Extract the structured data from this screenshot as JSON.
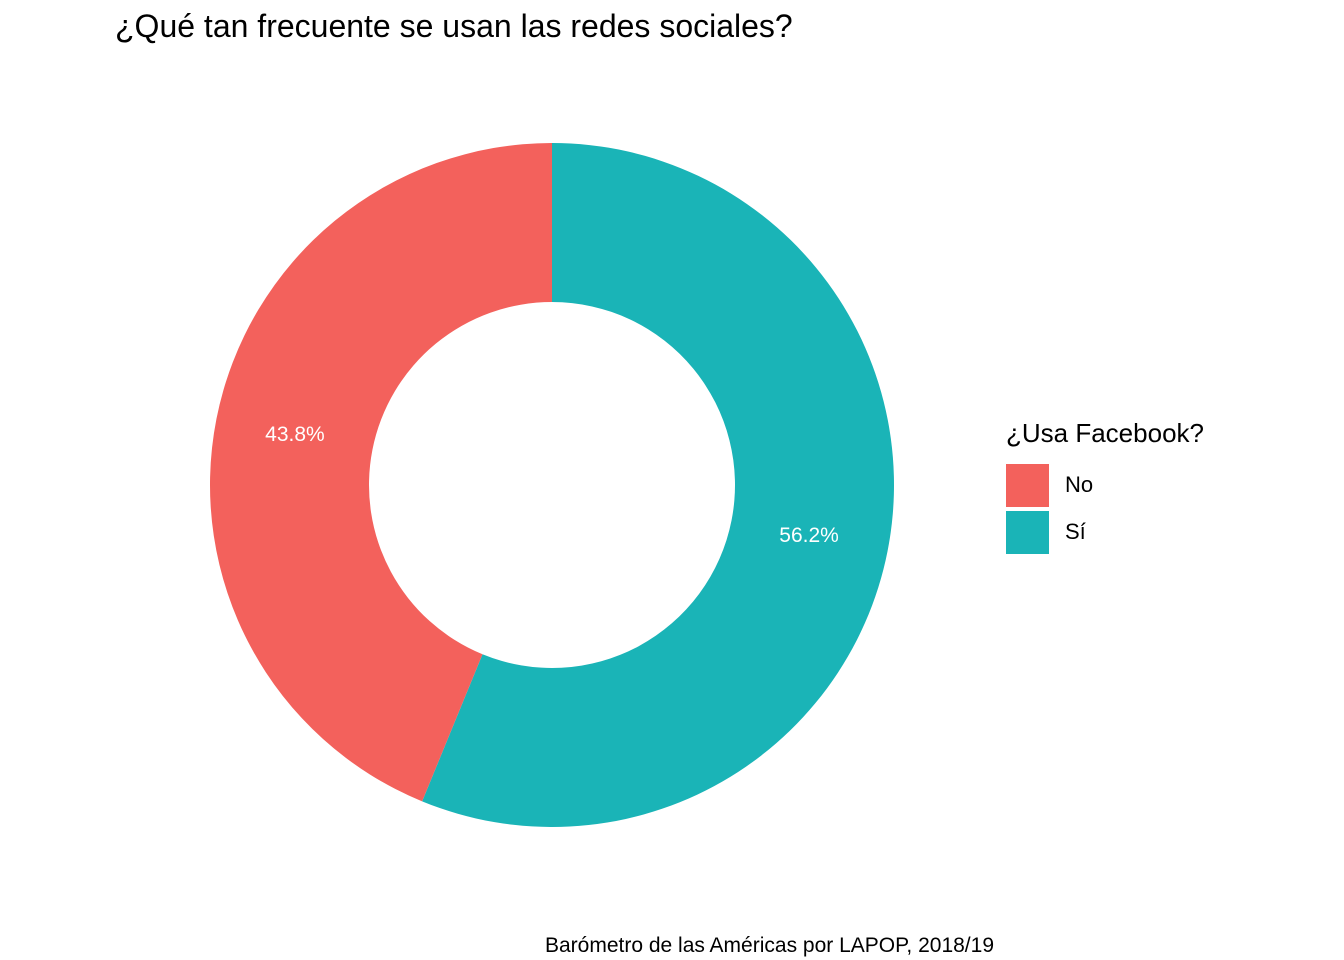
{
  "chart_data": {
    "type": "pie",
    "title": "¿Qué tan frecuente se usan las redes sociales?",
    "caption": "Barómetro de las Américas por LAPOP, 2018/19",
    "legend_title": "¿Usa Facebook?",
    "legend_position": "right",
    "donut": true,
    "categories": [
      "No",
      "Sí"
    ],
    "values": [
      43.8,
      56.2
    ],
    "labels": [
      "43.8%",
      "56.2%"
    ],
    "colors": [
      "#F3615C",
      "#1AB4B7"
    ],
    "label_color": "#ffffff"
  }
}
